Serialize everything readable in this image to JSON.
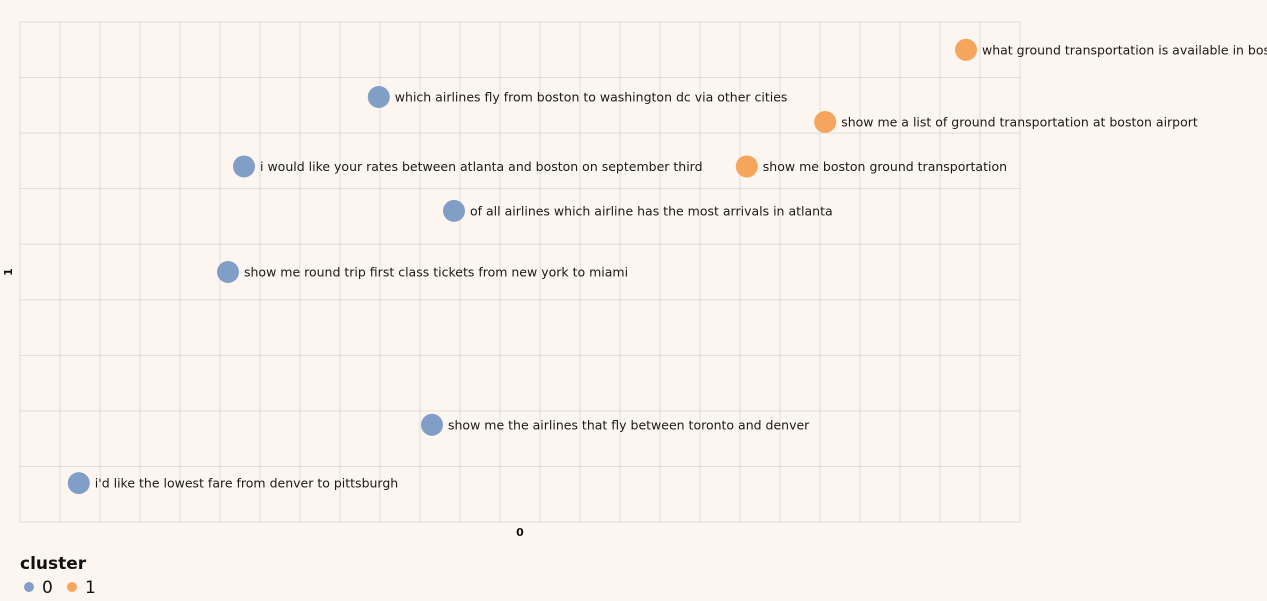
{
  "chart_data": {
    "type": "scatter",
    "title": "",
    "xlabel": "0",
    "ylabel": "1",
    "xlim": [
      0,
      25
    ],
    "ylim": [
      0,
      9
    ],
    "grid": true,
    "legend": {
      "title": "cluster",
      "placement": "bottom-left",
      "entries": [
        {
          "label": "0",
          "color": "#819fc6"
        },
        {
          "label": "1",
          "color": "#f5a55c"
        }
      ]
    },
    "points": [
      {
        "x": 23.65,
        "y": 8.5,
        "cluster": 1,
        "label": "what ground transportation is available in bost"
      },
      {
        "x": 8.97,
        "y": 7.65,
        "cluster": 0,
        "label": "which airlines fly from boston to washington dc via other cities"
      },
      {
        "x": 20.13,
        "y": 7.2,
        "cluster": 1,
        "label": "show me a list of ground transportation at boston airport"
      },
      {
        "x": 5.6,
        "y": 6.4,
        "cluster": 0,
        "label": "i would like your rates between atlanta and boston on september third"
      },
      {
        "x": 18.17,
        "y": 6.4,
        "cluster": 1,
        "label": "show me boston ground transportation"
      },
      {
        "x": 10.85,
        "y": 5.6,
        "cluster": 0,
        "label": "of all airlines which airline has the most arrivals in atlanta"
      },
      {
        "x": 5.2,
        "y": 4.5,
        "cluster": 0,
        "label": "show me round trip first class tickets from new york to miami"
      },
      {
        "x": 10.3,
        "y": 1.75,
        "cluster": 0,
        "label": "show me the airlines that fly between toronto and denver"
      },
      {
        "x": 1.47,
        "y": 0.7,
        "cluster": 0,
        "label": "i'd like the lowest fare from denver to pittsburgh"
      }
    ]
  }
}
